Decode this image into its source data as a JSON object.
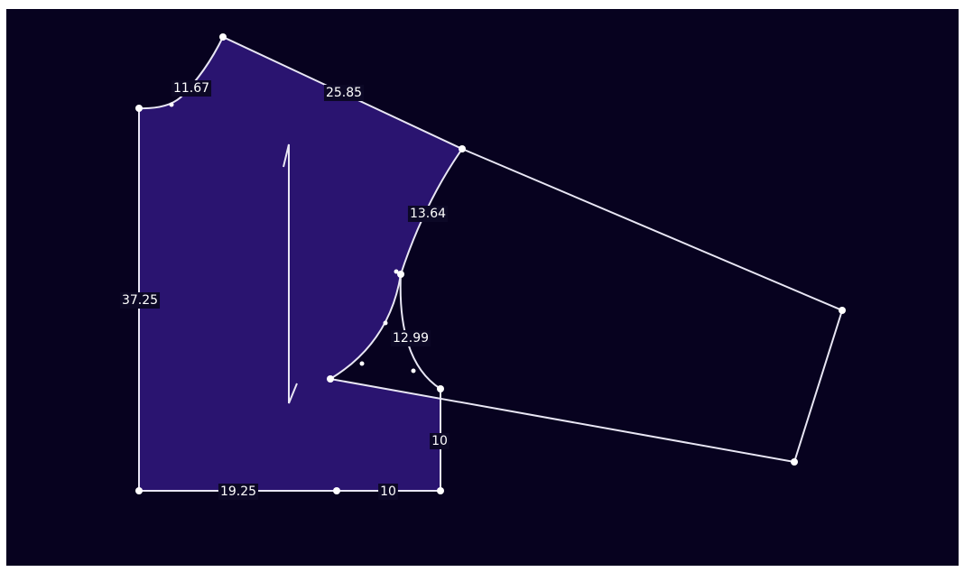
{
  "measurements": [
    {
      "label": "11.67"
    },
    {
      "label": "25.85"
    },
    {
      "label": "13.64"
    },
    {
      "label": "37.25"
    },
    {
      "label": "12.99"
    },
    {
      "label": "10"
    },
    {
      "label": "19.25"
    },
    {
      "label": "10"
    }
  ]
}
